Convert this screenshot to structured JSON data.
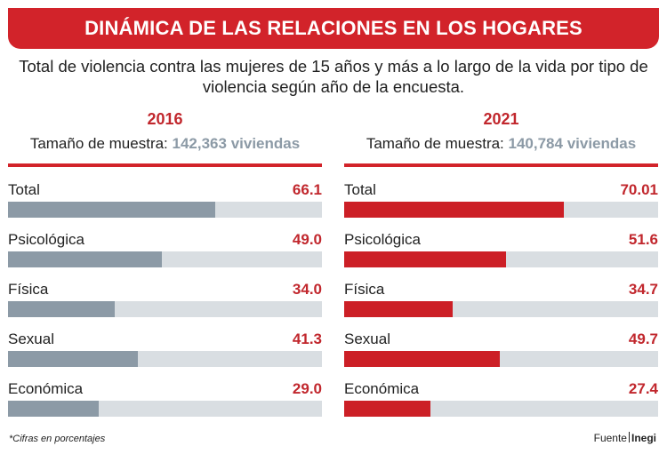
{
  "header": {
    "title": "DINÁMICA DE LAS RELACIONES EN LOS HOGARES",
    "subtitle": "Total de violencia contra las mujeres de 15 años y más a lo largo de la vida por tipo de violencia según año de la encuesta."
  },
  "colors": {
    "accent": "#d2232a",
    "bar_2016": "#8c9aa6",
    "bar_2021": "#cc1f26",
    "track": "#d9dee2"
  },
  "chart_data": [
    {
      "type": "bar",
      "title": "2016",
      "sample_label": "Tamaño de muestra:",
      "sample_value": "142,363 viviendas",
      "categories": [
        "Total",
        "Psicológica",
        "Física",
        "Sexual",
        "Económica"
      ],
      "values": [
        66.1,
        49.0,
        34.0,
        41.3,
        29.0
      ],
      "value_labels": [
        "66.1",
        "49.0",
        "34.0",
        "41.3",
        "29.0"
      ],
      "xlim": [
        0,
        100
      ]
    },
    {
      "type": "bar",
      "title": "2021",
      "sample_label": "Tamaño de muestra:",
      "sample_value": "140,784 viviendas",
      "categories": [
        "Total",
        "Psicológica",
        "Física",
        "Sexual",
        "Económica"
      ],
      "values": [
        70.01,
        51.6,
        34.7,
        49.7,
        27.4
      ],
      "value_labels": [
        "70.01",
        "51.6",
        "34.7",
        "49.7",
        "27.4"
      ],
      "xlim": [
        0,
        100
      ]
    }
  ],
  "footer": {
    "note": "*Cifras en porcentajes",
    "source_label": "Fuente",
    "source_name": "Inegi"
  }
}
